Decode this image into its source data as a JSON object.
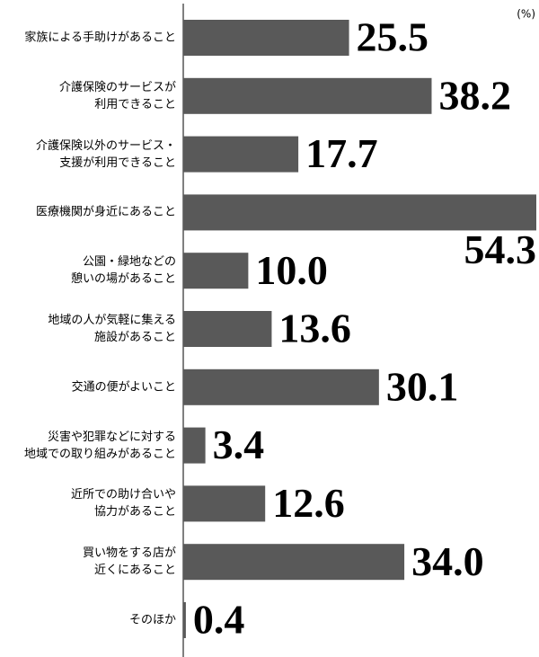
{
  "chart_data": {
    "type": "barh",
    "unit": "(%)",
    "categories": [
      "家族による手助けがあること",
      "介護保険のサービスが\n利用できること",
      "介護保険以外のサービス・\n支援が利用できること",
      "医療機関が身近にあること",
      "公園・緑地などの\n憩いの場があること",
      "地域の人が気軽に集える\n施設があること",
      "交通の便がよいこと",
      "災害や犯罪などに対する\n地域での取り組みがあること",
      "近所での助け合いや\n協力があること",
      "買い物をする店が\n近くにあること",
      "そのほか"
    ],
    "values": [
      25.5,
      38.2,
      17.7,
      54.3,
      10.0,
      13.6,
      30.1,
      3.4,
      12.6,
      34.0,
      0.4
    ],
    "value_labels": [
      "25.5",
      "38.2",
      "17.7",
      "54.3",
      "10.0",
      "13.6",
      "30.1",
      "3.4",
      "12.6",
      "34.0",
      "0.4"
    ],
    "color": "#595959"
  }
}
